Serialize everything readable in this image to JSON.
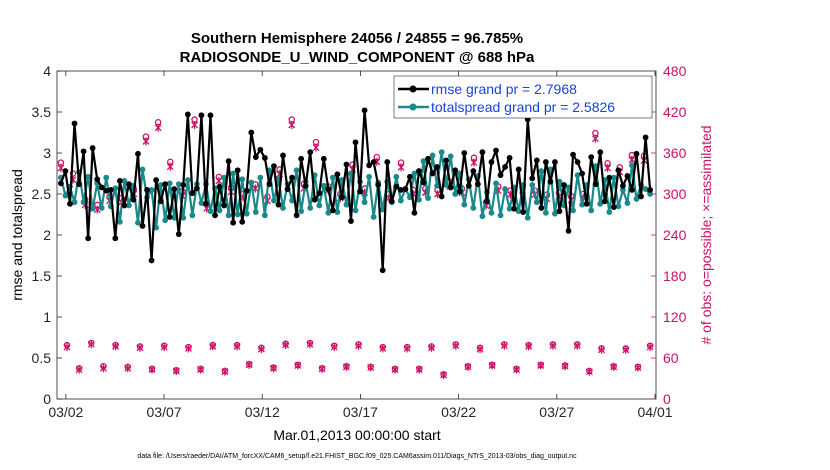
{
  "chart_data": {
    "type": "line",
    "title": "Southern Hemisphere 24056 / 24855 = 96.785%",
    "subtitle": "RADIOSONDE_U_WIND_COMPONENT @ 688 hPa",
    "xlabel": "Mar.01,2013 00:00:00 start",
    "ylabel_left": "rmse and totalspread",
    "ylabel_right": "# of obs: o=possible; ×=assimilated",
    "footer": "data file: /Users/raeder/DAI/ATM_forcXX/CAM6_setup/f.e21.FHIST_BGC.f09_025.CAM6assim.011/Diags_NTrS_2013-03/obs_diag_output.nc",
    "xlim": [
      1.55,
      32.05
    ],
    "ylim_left": [
      0,
      4
    ],
    "ylim_right": [
      0,
      480
    ],
    "grid": false,
    "x_ticks": [
      2,
      7,
      12,
      17,
      22,
      27,
      32
    ],
    "x_tick_labels": [
      "03/02",
      "03/07",
      "03/12",
      "03/17",
      "03/22",
      "03/27",
      "04/01"
    ],
    "y_left_ticks": [
      "0",
      "0.5",
      "1",
      "1.5",
      "2",
      "2.5",
      "3",
      "3.5",
      "4"
    ],
    "y_right_ticks": [
      "0",
      "60",
      "120",
      "180",
      "240",
      "300",
      "360",
      "420",
      "480"
    ],
    "colors": {
      "rmse": "#000000",
      "spread": "#1a8a8a",
      "obs": "#cc1166",
      "legend_text": "#1a44d8",
      "axis_right": "#cc1166"
    },
    "series": [
      {
        "name": "rmse grand pr = 2.7968",
        "axis": "left",
        "values": [
          2.63,
          2.78,
          2.38,
          3.36,
          2.62,
          3.02,
          1.96,
          3.06,
          2.68,
          2.58,
          2.54,
          2.55,
          1.96,
          2.66,
          2.36,
          2.62,
          2.43,
          2.99,
          2.11,
          2.55,
          1.69,
          2.67,
          2.41,
          2.62,
          2.22,
          2.56,
          2.01,
          2.61,
          3.47,
          2.51,
          2.57,
          3.46,
          2.38,
          3.46,
          2.24,
          2.59,
          2.36,
          2.9,
          2.15,
          2.79,
          2.16,
          2.54,
          3.25,
          2.95,
          3.04,
          2.94,
          2.62,
          2.84,
          2.37,
          2.97,
          2.56,
          2.7,
          2.24,
          2.93,
          2.6,
          3.01,
          2.43,
          2.51,
          2.93,
          2.56,
          2.3,
          2.74,
          2.46,
          2.86,
          2.17,
          3.13,
          2.53,
          3.52,
          2.85,
          2.89,
          2.61,
          1.57,
          2.89,
          2.41,
          2.59,
          2.55,
          2.56,
          2.71,
          2.27,
          2.78,
          2.64,
          2.93,
          2.75,
          2.83,
          2.47,
          2.91,
          2.58,
          2.79,
          2.53,
          3.0,
          2.6,
          2.78,
          2.62,
          3.01,
          2.41,
          2.89,
          3.03,
          2.73,
          2.83,
          2.94,
          2.32,
          2.8,
          2.28,
          3.41,
          2.69,
          2.91,
          2.33,
          2.89,
          2.65,
          2.89,
          2.29,
          2.61,
          2.05,
          2.98,
          2.89,
          2.75,
          2.38,
          2.95,
          2.62,
          3.01,
          2.41,
          2.7,
          2.34,
          2.79,
          2.6,
          2.72,
          2.55,
          2.99,
          2.47,
          3.19,
          2.55
        ]
      },
      {
        "name": "totalspread grand pr = 2.5826",
        "axis": "left",
        "values": [
          2.7,
          2.48,
          2.59,
          2.4,
          2.77,
          2.4,
          2.71,
          2.32,
          2.63,
          2.33,
          2.7,
          2.35,
          2.57,
          2.16,
          2.66,
          2.36,
          2.6,
          2.15,
          2.8,
          2.46,
          2.55,
          2.09,
          2.61,
          2.18,
          2.63,
          2.21,
          2.62,
          2.21,
          2.67,
          2.24,
          2.62,
          2.39,
          2.62,
          2.29,
          2.57,
          2.3,
          2.7,
          2.24,
          2.75,
          2.25,
          2.68,
          2.26,
          2.64,
          2.28,
          2.7,
          2.24,
          2.79,
          2.42,
          2.68,
          2.33,
          2.62,
          2.42,
          2.79,
          2.29,
          2.65,
          2.33,
          2.73,
          2.36,
          2.6,
          2.27,
          2.7,
          2.28,
          2.67,
          2.37,
          2.75,
          2.3,
          2.65,
          2.4,
          2.71,
          2.22,
          2.64,
          2.31,
          2.65,
          2.4,
          2.71,
          2.42,
          2.56,
          2.46,
          2.75,
          2.43,
          2.9,
          2.45,
          2.97,
          2.6,
          3.01,
          2.61,
          2.96,
          2.5,
          2.75,
          2.37,
          2.68,
          2.33,
          2.72,
          2.23,
          2.52,
          2.27,
          2.63,
          2.24,
          2.56,
          2.32,
          2.58,
          2.29,
          2.61,
          2.21,
          2.61,
          2.4,
          2.78,
          2.27,
          2.8,
          2.26,
          2.65,
          2.36,
          2.58,
          2.3,
          2.73,
          2.37,
          2.61,
          2.3,
          2.84,
          2.38,
          2.67,
          2.28,
          2.7,
          2.35,
          2.55,
          2.39,
          2.85,
          2.44,
          2.61,
          2.56,
          2.5
        ]
      },
      {
        "name": "obs possible",
        "axis": "right",
        "marker": "o",
        "values": [
          346,
          79,
          330,
          45,
          292,
          82,
          284,
          48,
          296,
          79,
          294,
          47,
          307,
          77,
          384,
          44,
          405,
          78,
          347,
          42,
          304,
          76,
          409,
          44,
          286,
          79,
          325,
          41,
          309,
          79,
          300,
          51,
          314,
          75,
          296,
          46,
          336,
          81,
          409,
          50,
          315,
          82,
          376,
          45,
          311,
          78,
          300,
          48,
          343,
          80,
          308,
          47,
          354,
          76,
          300,
          44,
          346,
          76,
          306,
          44,
          308,
          77,
          306,
          36,
          318,
          80,
          308,
          48,
          353,
          75,
          288,
          50,
          311,
          80,
          305,
          44,
          311,
          79,
          305,
          50,
          299,
          80,
          302,
          49,
          297,
          80,
          300,
          41,
          389,
          74,
          345,
          48,
          339,
          74,
          357,
          47,
          356,
          78
        ]
      },
      {
        "name": "obs assimilated",
        "axis": "right",
        "marker": "x",
        "values": [
          338,
          76,
          321,
          43,
          284,
          80,
          277,
          45,
          290,
          77,
          288,
          45,
          300,
          75,
          377,
          43,
          397,
          76,
          340,
          41,
          297,
          74,
          401,
          43,
          279,
          77,
          319,
          40,
          303,
          77,
          295,
          50,
          308,
          73,
          290,
          45,
          329,
          79,
          401,
          49,
          308,
          80,
          368,
          44,
          305,
          76,
          294,
          47,
          336,
          78,
          302,
          46,
          347,
          74,
          294,
          43,
          339,
          74,
          300,
          43,
          302,
          75,
          300,
          35,
          311,
          78,
          302,
          47,
          346,
          73,
          283,
          49,
          305,
          78,
          299,
          43,
          305,
          77,
          299,
          49,
          293,
          78,
          296,
          48,
          291,
          78,
          294,
          40,
          381,
          72,
          338,
          47,
          332,
          72,
          350,
          46,
          349,
          76
        ]
      }
    ],
    "legend": {
      "placement": "top-right",
      "entries": [
        "rmse grand pr = 2.7968",
        "totalspread grand pr = 2.5826"
      ]
    }
  }
}
